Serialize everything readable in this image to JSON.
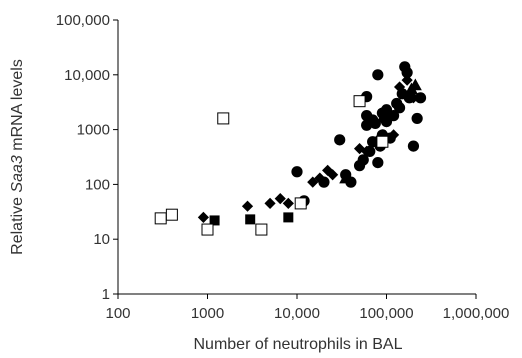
{
  "chart_data": {
    "type": "scatter",
    "title": "",
    "xlabel": "Number of neutrophils in BAL",
    "ylabel_parts": [
      "Relative ",
      "Saa3",
      " mRNA levels"
    ],
    "x_scale": "log",
    "y_scale": "log",
    "xlim": [
      100,
      1000000
    ],
    "ylim": [
      1,
      100000
    ],
    "x_ticks": [
      100,
      1000,
      10000,
      100000,
      1000000
    ],
    "x_tick_labels": [
      "100",
      "1000",
      "10,000",
      "100,000",
      "1,000,000"
    ],
    "y_ticks": [
      1,
      10,
      100,
      1000,
      10000,
      100000
    ],
    "y_tick_labels": [
      "1",
      "10",
      "100",
      "1000",
      "10,000",
      "100,000"
    ],
    "grid": false,
    "legend": "none",
    "series": [
      {
        "marker": "circle",
        "color": "#000000",
        "points": [
          [
            10000,
            170
          ],
          [
            12000,
            50
          ],
          [
            20000,
            110
          ],
          [
            30000,
            650
          ],
          [
            35000,
            150
          ],
          [
            40000,
            110
          ],
          [
            50000,
            220
          ],
          [
            55000,
            280
          ],
          [
            60000,
            1200
          ],
          [
            60000,
            4000
          ],
          [
            65000,
            400
          ],
          [
            70000,
            600
          ],
          [
            75000,
            1300
          ],
          [
            80000,
            10000
          ],
          [
            80000,
            250
          ],
          [
            85000,
            500
          ],
          [
            90000,
            2000
          ],
          [
            90000,
            800
          ],
          [
            95000,
            1600
          ],
          [
            100000,
            2300
          ],
          [
            110000,
            700
          ],
          [
            120000,
            1800
          ],
          [
            130000,
            3000
          ],
          [
            140000,
            2500
          ],
          [
            150000,
            4500
          ],
          [
            160000,
            14000
          ],
          [
            170000,
            11000
          ],
          [
            180000,
            3800
          ],
          [
            200000,
            500
          ],
          [
            220000,
            1600
          ],
          [
            240000,
            3800
          ],
          [
            60000,
            1800
          ],
          [
            70000,
            1500
          ],
          [
            100000,
            1400
          ]
        ]
      },
      {
        "marker": "diamond",
        "color": "#000000",
        "points": [
          [
            900,
            25
          ],
          [
            2800,
            40
          ],
          [
            5000,
            45
          ],
          [
            6500,
            55
          ],
          [
            8000,
            45
          ],
          [
            15000,
            110
          ],
          [
            18000,
            130
          ],
          [
            22000,
            180
          ],
          [
            25000,
            150
          ],
          [
            60000,
            400
          ],
          [
            80000,
            650
          ],
          [
            120000,
            800
          ],
          [
            140000,
            6000
          ],
          [
            170000,
            8000
          ],
          [
            200000,
            3800
          ],
          [
            50000,
            450
          ]
        ]
      },
      {
        "marker": "square",
        "color": "#000000",
        "points": [
          [
            1200,
            22
          ],
          [
            3000,
            23
          ],
          [
            8000,
            25
          ]
        ]
      },
      {
        "marker": "open-square",
        "color": "#000000",
        "points": [
          [
            300,
            24
          ],
          [
            400,
            28
          ],
          [
            1000,
            15
          ],
          [
            1500,
            1600
          ],
          [
            4000,
            15
          ],
          [
            11000,
            45
          ],
          [
            50000,
            3300
          ],
          [
            90000,
            600
          ]
        ]
      },
      {
        "marker": "triangle",
        "color": "#000000",
        "points": [
          [
            35000,
            130
          ],
          [
            190000,
            5500
          ],
          [
            210000,
            6500
          ]
        ]
      }
    ]
  }
}
